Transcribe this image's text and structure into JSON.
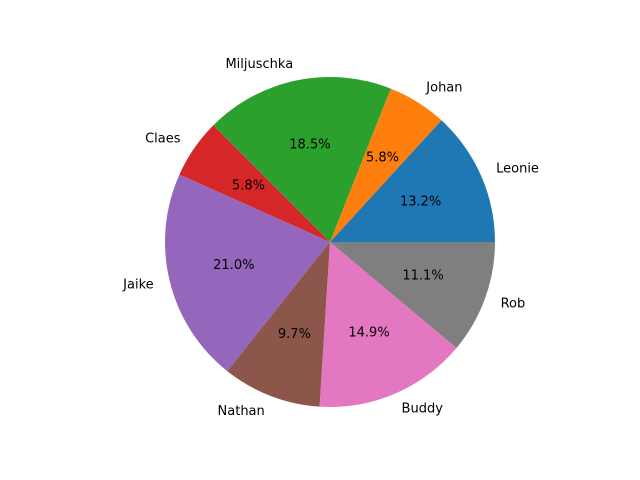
{
  "chart_data": {
    "type": "pie",
    "title": "",
    "start_angle_deg": 0,
    "direction": "counterclockwise",
    "slices": [
      {
        "label": "Leonie",
        "value": 13.2,
        "pct_label": "13.2%",
        "color": "#1f77b4"
      },
      {
        "label": "Johan",
        "value": 5.8,
        "pct_label": "5.8%",
        "color": "#ff7f0e"
      },
      {
        "label": "Miljuschka",
        "value": 18.5,
        "pct_label": "18.5%",
        "color": "#2ca02c"
      },
      {
        "label": "Claes",
        "value": 5.8,
        "pct_label": "5.8%",
        "color": "#d62728"
      },
      {
        "label": "Jaike",
        "value": 21.0,
        "pct_label": "21.0%",
        "color": "#9467bd"
      },
      {
        "label": "Nathan",
        "value": 9.7,
        "pct_label": "9.7%",
        "color": "#8c564b"
      },
      {
        "label": "Buddy",
        "value": 14.9,
        "pct_label": "14.9%",
        "color": "#e377c2"
      },
      {
        "label": "Rob",
        "value": 11.1,
        "pct_label": "11.1%",
        "color": "#7f7f7f"
      }
    ]
  }
}
